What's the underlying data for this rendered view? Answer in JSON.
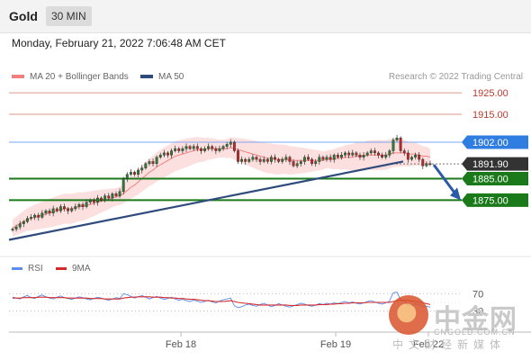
{
  "header": {
    "title": "Gold",
    "timeframe_label": "30 MIN",
    "datetime": "Monday, February 21, 2022 7:06:48 AM CET"
  },
  "legend": {
    "items": [
      {
        "label": "MA 20 + Bollinger Bands",
        "color": "#f08080"
      },
      {
        "label": "MA 50",
        "color": "#2f4b7c"
      }
    ],
    "copyright": "Research © 2022 Trading Central"
  },
  "rsi_legend": {
    "items": [
      {
        "label": "RSI",
        "color": "#5b8def"
      },
      {
        "label": "9MA",
        "color": "#d42a2a"
      }
    ]
  },
  "watermark": {
    "brand_cn": "中金网",
    "domain": "CNGOLD.COM.CN",
    "slogan": "中文财经新媒体"
  },
  "chart_data": [
    {
      "type": "candlestick",
      "title": "",
      "instrument": "Gold",
      "interval": "30 MIN",
      "ylim": [
        1850,
        1928
      ],
      "x_ticks": [
        "Feb 18",
        "Feb 19",
        "Feb 22"
      ],
      "levels": [
        {
          "label": "1925.00",
          "value": 1925.0,
          "role": "resistance",
          "color": "#c0392b"
        },
        {
          "label": "1915.00",
          "value": 1915.0,
          "role": "resistance",
          "color": "#c0392b"
        },
        {
          "label": "1902.00",
          "value": 1902.0,
          "role": "pivot",
          "color": "#2f7de1"
        },
        {
          "label": "1891.90",
          "value": 1891.9,
          "role": "last price",
          "color": "#333333"
        },
        {
          "label": "1885.00",
          "value": 1885.0,
          "role": "support",
          "color": "#1a7a1a"
        },
        {
          "label": "1875.00",
          "value": 1875.0,
          "role": "support",
          "color": "#1a7a1a"
        }
      ],
      "close_series": [
        1861.5,
        1862.5,
        1864,
        1865,
        1866.5,
        1867,
        1868,
        1867,
        1869,
        1870,
        1869,
        1871,
        1870,
        1872,
        1871,
        1870,
        1871,
        1872,
        1873,
        1872,
        1874,
        1875,
        1874,
        1876,
        1875,
        1877,
        1876,
        1878,
        1877,
        1879,
        1885,
        1887,
        1888,
        1887,
        1889,
        1890,
        1892,
        1893,
        1892,
        1895,
        1896,
        1897,
        1896,
        1898,
        1899,
        1898,
        1899,
        1900,
        1899,
        1900,
        1899,
        1898,
        1899,
        1900,
        1899,
        1898,
        1899,
        1900,
        1901,
        1902,
        1898,
        1893,
        1894,
        1893,
        1894,
        1895,
        1894,
        1893,
        1894,
        1893,
        1895,
        1894,
        1893,
        1894,
        1895,
        1893,
        1891,
        1892,
        1893,
        1895,
        1894,
        1892,
        1893,
        1895,
        1894,
        1895,
        1894,
        1896,
        1895,
        1896,
        1897,
        1896,
        1897,
        1896,
        1895,
        1896,
        1897,
        1898,
        1897,
        1896,
        1895,
        1896,
        1898,
        1903,
        1904,
        1898,
        1897,
        1894,
        1895,
        1896,
        1894,
        1891,
        1892,
        1891.9
      ],
      "ma20": [
        1862,
        1863,
        1864,
        1865,
        1866,
        1866.5,
        1867,
        1867.5,
        1868,
        1868.5,
        1869,
        1869.5,
        1870,
        1870.5,
        1871,
        1871,
        1871,
        1871.5,
        1872,
        1872,
        1872.5,
        1873,
        1873.5,
        1874,
        1874.5,
        1875,
        1875.5,
        1876,
        1876.5,
        1877,
        1878,
        1879.5,
        1881,
        1882,
        1883.5,
        1885,
        1886.5,
        1888,
        1889,
        1890.5,
        1891.5,
        1892.5,
        1893.5,
        1894.5,
        1895.5,
        1896,
        1896.5,
        1897,
        1897.5,
        1898,
        1898.5,
        1898.5,
        1898.5,
        1899,
        1899,
        1899,
        1899,
        1899,
        1899,
        1899.5,
        1899,
        1898.5,
        1898,
        1897.5,
        1897,
        1896.5,
        1896,
        1895.5,
        1895,
        1894.5,
        1894.5,
        1894,
        1894,
        1894,
        1894,
        1893.5,
        1893.5,
        1893.5,
        1893.5,
        1893.5,
        1893.5,
        1893.5,
        1893.5,
        1893.5,
        1893.5,
        1894,
        1894,
        1894,
        1894.5,
        1894.5,
        1895,
        1895,
        1895,
        1895.5,
        1895.5,
        1895.5,
        1896,
        1896,
        1896,
        1896,
        1896,
        1896,
        1896.5,
        1897,
        1897,
        1897,
        1897,
        1896.5,
        1896.5,
        1896.5,
        1896,
        1895.5,
        1895.5,
        1895
      ],
      "ma50_line": {
        "start": 1856.5,
        "end": 1893.0
      },
      "forecast_arrow": {
        "from": 1891.9,
        "to": 1875.0
      }
    },
    {
      "type": "line",
      "title": "RSI",
      "levels": [
        {
          "label": "70",
          "value": 70
        },
        {
          "label": "30",
          "value": 30
        }
      ],
      "ylim": [
        0,
        100
      ],
      "series": [
        {
          "name": "RSI",
          "color": "#5b8def",
          "values": [
            62,
            60,
            58,
            63,
            66,
            61,
            59,
            64,
            67,
            63,
            60,
            58,
            62,
            65,
            61,
            59,
            57,
            60,
            63,
            61,
            58,
            56,
            59,
            62,
            60,
            57,
            55,
            58,
            61,
            59,
            70,
            68,
            64,
            60,
            63,
            66,
            62,
            58,
            61,
            64,
            60,
            57,
            59,
            62,
            58,
            55,
            57,
            54,
            52,
            55,
            53,
            50,
            52,
            55,
            51,
            49,
            53,
            56,
            58,
            60,
            42,
            38,
            40,
            44,
            46,
            43,
            41,
            45,
            48,
            44,
            40,
            43,
            47,
            44,
            41,
            39,
            42,
            45,
            48,
            46,
            43,
            41,
            44,
            47,
            45,
            48,
            46,
            49,
            47,
            50,
            52,
            49,
            51,
            48,
            46,
            49,
            52,
            54,
            51,
            48,
            46,
            49,
            53,
            72,
            74,
            56,
            52,
            44,
            42,
            47,
            45,
            40,
            41,
            39
          ]
        },
        {
          "name": "9MA",
          "color": "#d42a2a",
          "values": [
            60,
            60,
            60,
            61,
            61,
            61,
            61,
            62,
            62,
            62,
            61,
            61,
            61,
            61,
            61,
            60,
            60,
            60,
            60,
            60,
            60,
            59,
            59,
            59,
            59,
            58,
            58,
            58,
            58,
            58,
            60,
            61,
            62,
            62,
            63,
            63,
            63,
            63,
            62,
            62,
            62,
            61,
            61,
            60,
            60,
            59,
            59,
            58,
            57,
            57,
            56,
            55,
            54,
            54,
            53,
            52,
            52,
            52,
            53,
            54,
            52,
            50,
            49,
            48,
            47,
            46,
            45,
            44,
            44,
            44,
            44,
            44,
            44,
            44,
            44,
            43,
            43,
            43,
            44,
            44,
            44,
            44,
            44,
            45,
            45,
            45,
            46,
            46,
            47,
            47,
            48,
            48,
            49,
            49,
            49,
            49,
            50,
            50,
            50,
            50,
            50,
            50,
            50,
            52,
            54,
            55,
            55,
            54,
            53,
            52,
            51,
            49,
            47,
            45
          ]
        }
      ]
    }
  ]
}
